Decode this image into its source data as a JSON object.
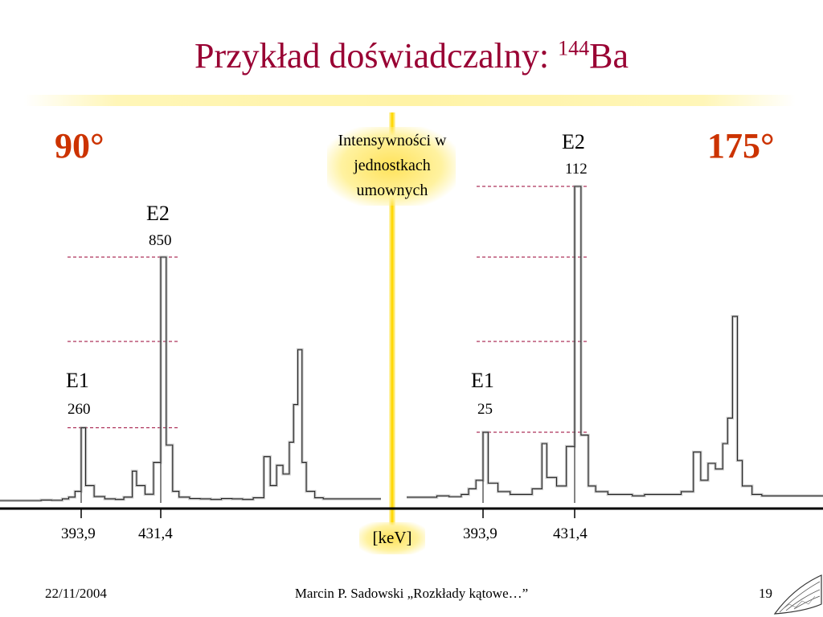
{
  "slide": {
    "title_main": "Przykład doświadczalny: ",
    "title_mass": "144",
    "title_element": "Ba"
  },
  "angles": {
    "left": "90°",
    "right": "175°"
  },
  "center": {
    "intensity_note": "Intensywności w jednostkach umownych",
    "unit": "[keV]"
  },
  "colors": {
    "title": "#990033",
    "angle": "#cc3300",
    "highlight": "#ffd700",
    "dashed": "#990033"
  },
  "chart_data": [
    {
      "type": "line",
      "panel": "90°",
      "xlabel": "[keV]",
      "x_ticks": [
        "393,9",
        "431,4"
      ],
      "peaks": [
        {
          "transition": "E1",
          "energy": 393.9,
          "intensity": 260,
          "label": "E1",
          "value_label": "260"
        },
        {
          "transition": "E2",
          "energy": 431.4,
          "intensity": 850,
          "label": "E2",
          "value_label": "850"
        }
      ],
      "spectrum": [
        [
          370,
          8
        ],
        [
          375,
          10
        ],
        [
          380,
          9
        ],
        [
          385,
          14
        ],
        [
          388,
          20
        ],
        [
          391,
          40
        ],
        [
          393.9,
          260
        ],
        [
          396,
          60
        ],
        [
          400,
          22
        ],
        [
          405,
          14
        ],
        [
          410,
          12
        ],
        [
          414,
          20
        ],
        [
          418,
          110
        ],
        [
          420,
          60
        ],
        [
          424,
          30
        ],
        [
          428,
          140
        ],
        [
          431.4,
          850
        ],
        [
          434,
          200
        ],
        [
          437,
          40
        ],
        [
          440,
          20
        ],
        [
          445,
          15
        ],
        [
          450,
          14
        ],
        [
          455,
          12
        ],
        [
          460,
          15
        ],
        [
          465,
          14
        ],
        [
          470,
          12
        ],
        [
          475,
          18
        ],
        [
          480,
          160
        ],
        [
          483,
          60
        ],
        [
          486,
          130
        ],
        [
          489,
          100
        ],
        [
          492,
          210
        ],
        [
          494,
          340
        ],
        [
          496,
          530
        ],
        [
          498,
          140
        ],
        [
          500,
          40
        ],
        [
          504,
          18
        ],
        [
          508,
          14
        ]
      ]
    },
    {
      "type": "line",
      "panel": "175°",
      "xlabel": "[keV]",
      "x_ticks": [
        "393,9",
        "431,4"
      ],
      "peaks": [
        {
          "transition": "E1",
          "energy": 393.9,
          "intensity": 25,
          "label": "E1",
          "value_label": "25"
        },
        {
          "transition": "E2",
          "energy": 431.4,
          "intensity": 112,
          "label": "E2",
          "value_label": "112"
        }
      ],
      "spectrum": [
        [
          370,
          2
        ],
        [
          375,
          2.5
        ],
        [
          380,
          2.2
        ],
        [
          385,
          3
        ],
        [
          388,
          5
        ],
        [
          391,
          8
        ],
        [
          393.9,
          25
        ],
        [
          396,
          7
        ],
        [
          400,
          4
        ],
        [
          405,
          3
        ],
        [
          410,
          3
        ],
        [
          414,
          5
        ],
        [
          418,
          21
        ],
        [
          420,
          9
        ],
        [
          424,
          6
        ],
        [
          428,
          20
        ],
        [
          431.4,
          112
        ],
        [
          434,
          24
        ],
        [
          437,
          6
        ],
        [
          440,
          4
        ],
        [
          445,
          3
        ],
        [
          450,
          3
        ],
        [
          455,
          2.5
        ],
        [
          460,
          3
        ],
        [
          465,
          3
        ],
        [
          470,
          3
        ],
        [
          475,
          4
        ],
        [
          480,
          18
        ],
        [
          483,
          8
        ],
        [
          486,
          14
        ],
        [
          489,
          12
        ],
        [
          492,
          21
        ],
        [
          494,
          30
        ],
        [
          496,
          66
        ],
        [
          498,
          15
        ],
        [
          500,
          6
        ],
        [
          504,
          3
        ],
        [
          508,
          2.5
        ]
      ]
    }
  ],
  "footer": {
    "date": "22/11/2004",
    "author": "Marcin P. Sadowski „Rozkłady kątowe…”",
    "page": "19"
  }
}
